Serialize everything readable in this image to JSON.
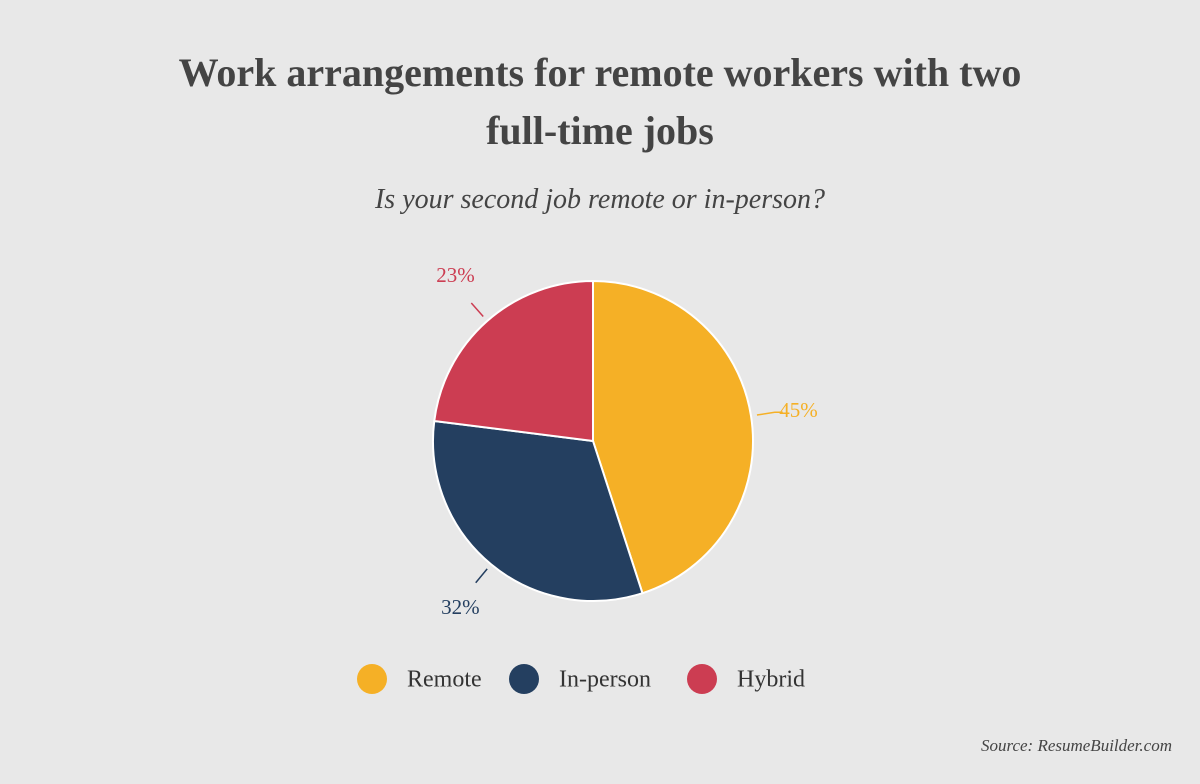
{
  "chart_data": {
    "type": "pie",
    "title": "Work arrangements for remote workers with two full-time jobs",
    "subtitle": "Is your second job remote or in-person?",
    "categories": [
      "Remote",
      "In-person",
      "Hybrid"
    ],
    "values": [
      45,
      32,
      23
    ],
    "value_labels": [
      "45%",
      "32%",
      "23%"
    ],
    "colors": [
      "#f5b026",
      "#243f60",
      "#cc3d52"
    ],
    "source": "Source: ResumeBuilder.com"
  }
}
